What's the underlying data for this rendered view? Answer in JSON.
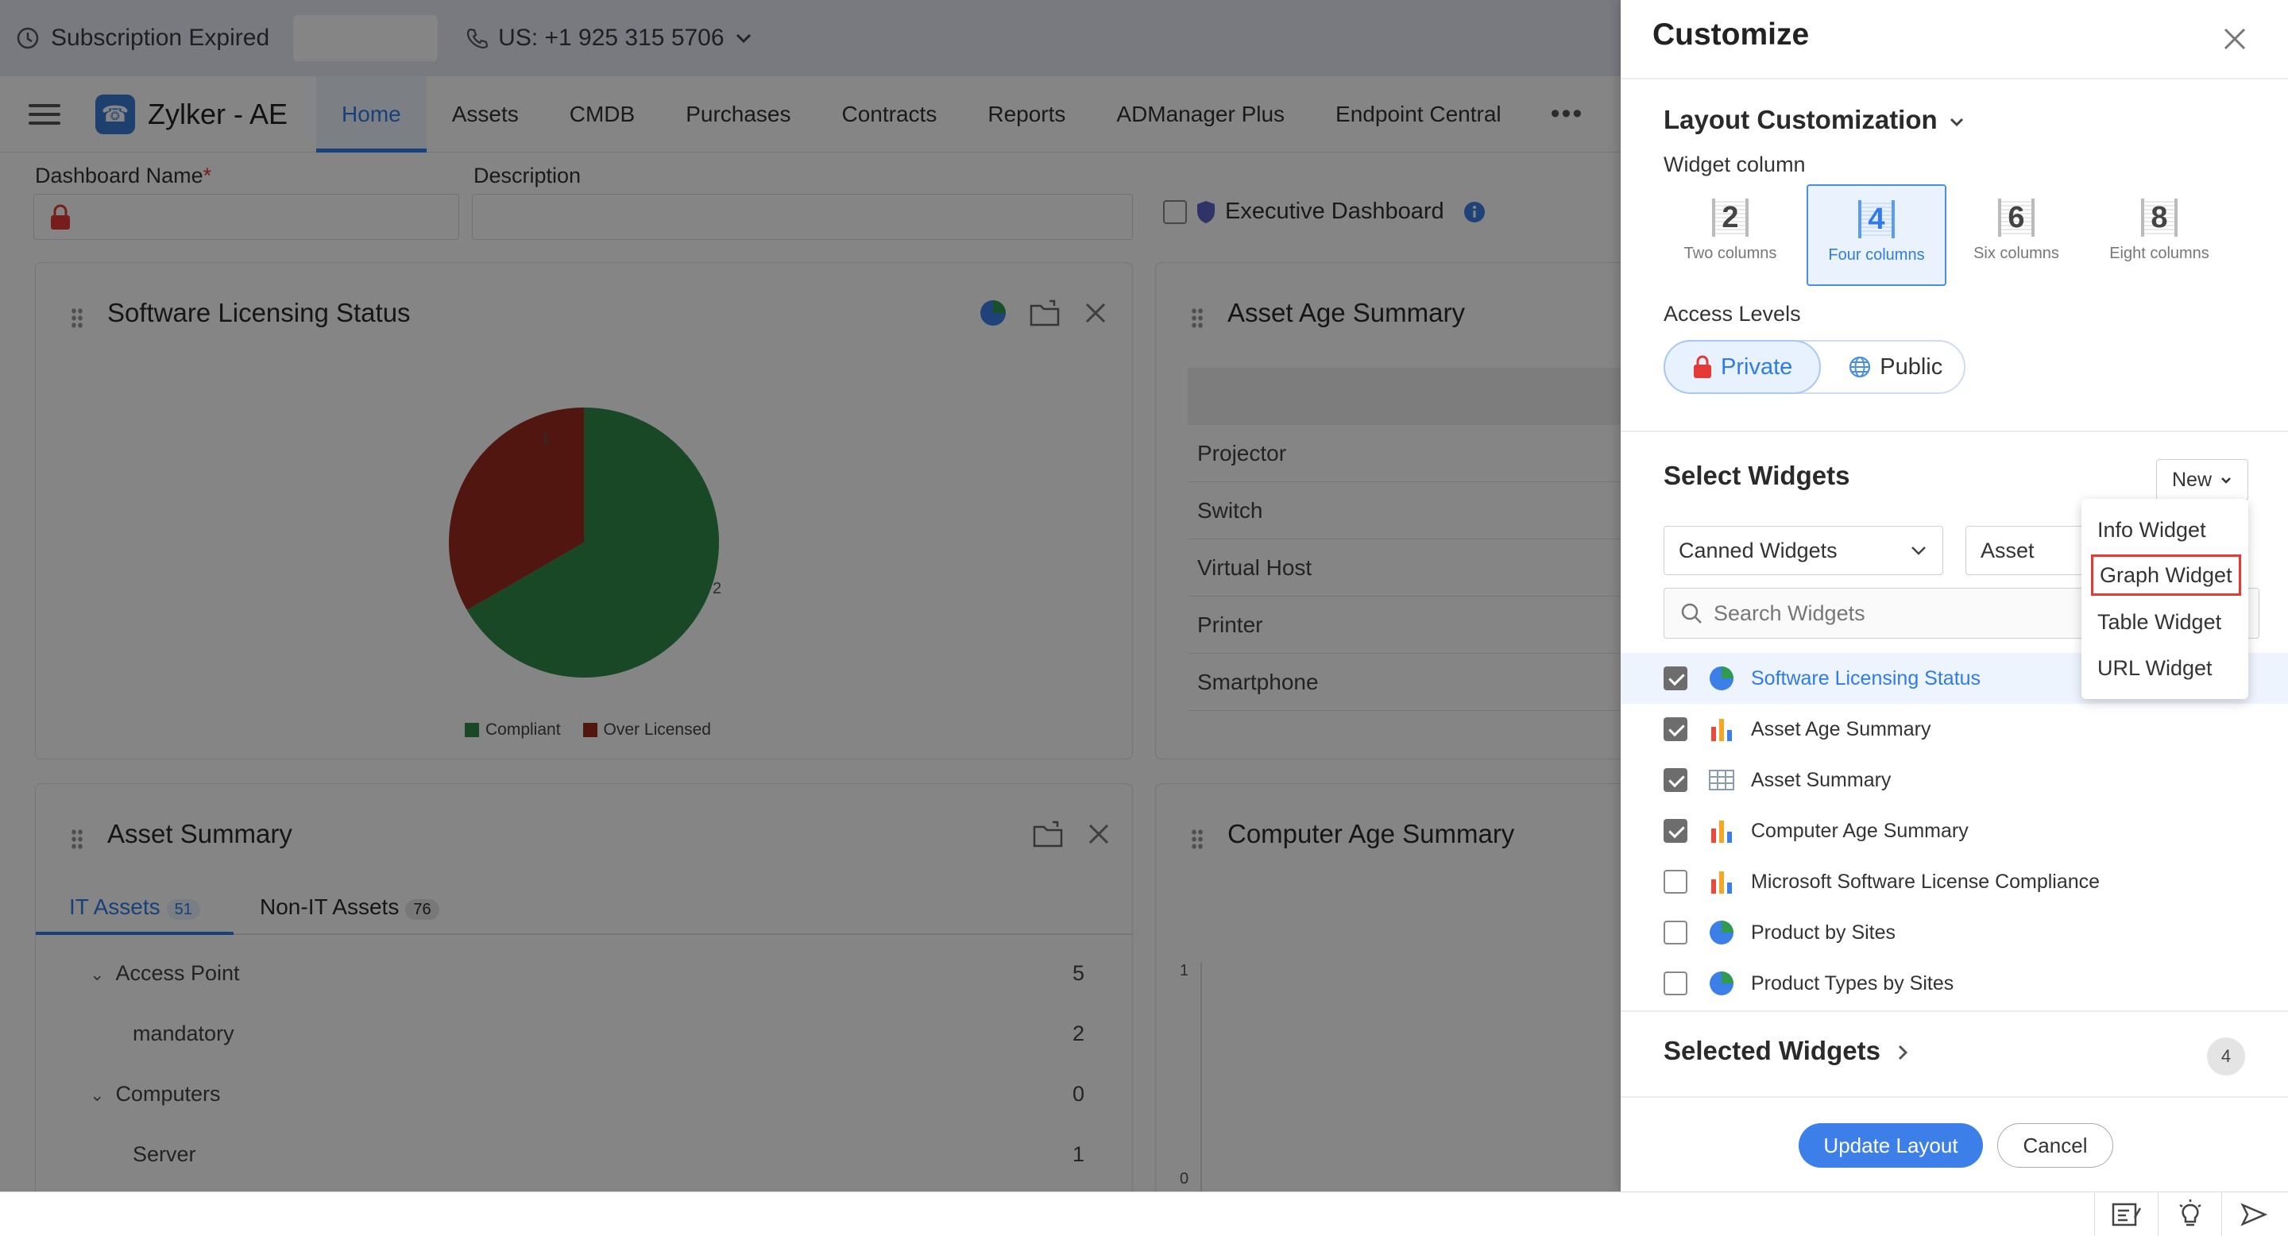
{
  "topbar": {
    "subscription": "Subscription Expired",
    "phone": "US: +1 925 315 5706"
  },
  "nav": {
    "brand": "Zylker - AE",
    "tabs": [
      "Home",
      "Assets",
      "CMDB",
      "Purchases",
      "Contracts",
      "Reports",
      "ADManager Plus",
      "Endpoint Central"
    ],
    "active_tab": "Home"
  },
  "form": {
    "dashboard_name_label": "Dashboard Name",
    "required_mark": "*",
    "description_label": "Description",
    "executive_label": "Executive Dashboard"
  },
  "widgets": {
    "licensing": {
      "title": "Software Licensing Status",
      "chart_data": {
        "type": "pie",
        "categories": [
          "Compliant",
          "Over Licensed"
        ],
        "values": [
          2,
          1
        ],
        "colors": [
          "#2e8b4a",
          "#9c2b1f"
        ],
        "legend": "bottom"
      },
      "slice_labels": [
        "1",
        "2"
      ]
    },
    "asset_age": {
      "title": "Asset Age Summary",
      "rows": [
        "Projector",
        "Switch",
        "Virtual Host",
        "Printer",
        "Smartphone"
      ]
    },
    "asset_summary": {
      "title": "Asset Summary",
      "tabs": [
        {
          "label": "IT Assets",
          "count": "51"
        },
        {
          "label": "Non-IT Assets",
          "count": "76"
        }
      ],
      "rows": [
        {
          "label": "Access Point",
          "value": "5"
        },
        {
          "label": "mandatory",
          "value": "2"
        },
        {
          "label": "Computers",
          "value": "0"
        },
        {
          "label": "Server",
          "value": "1"
        }
      ]
    },
    "computer_age": {
      "title": "Computer Age Summary",
      "y_ticks": [
        "1",
        "0"
      ]
    }
  },
  "panel": {
    "title": "Customize",
    "layout": {
      "title": "Layout Customization",
      "widget_column_label": "Widget column",
      "options": [
        {
          "num": "2",
          "label": "Two columns"
        },
        {
          "num": "4",
          "label": "Four columns"
        },
        {
          "num": "6",
          "label": "Six columns"
        },
        {
          "num": "8",
          "label": "Eight columns"
        }
      ],
      "selected": "4",
      "access_label": "Access Levels",
      "access_private": "Private",
      "access_public": "Public"
    },
    "select_widgets": {
      "title": "Select Widgets",
      "new_button": "New",
      "type_select": "Canned Widgets",
      "module_select": "Asset",
      "search_placeholder": "Search Widgets",
      "items": [
        {
          "name": "Software Licensing Status",
          "checked": true,
          "icon": "pie-chart-icon",
          "highlight": true
        },
        {
          "name": "Asset Age Summary",
          "checked": true,
          "icon": "bar-chart-icon"
        },
        {
          "name": "Asset Summary",
          "checked": true,
          "icon": "table-icon"
        },
        {
          "name": "Computer Age Summary",
          "checked": true,
          "icon": "bar-chart-icon"
        },
        {
          "name": "Microsoft Software License Compliance",
          "checked": false,
          "icon": "bar-chart-icon"
        },
        {
          "name": "Product by Sites",
          "checked": false,
          "icon": "pie-chart-icon"
        },
        {
          "name": "Product Types by Sites",
          "checked": false,
          "icon": "pie-chart-icon"
        }
      ]
    },
    "new_menu": [
      "Info Widget",
      "Graph Widget",
      "Table Widget",
      "URL Widget"
    ],
    "selected_widgets": {
      "title": "Selected Widgets",
      "count": "4"
    },
    "buttons": {
      "update": "Update Layout",
      "cancel": "Cancel"
    }
  }
}
